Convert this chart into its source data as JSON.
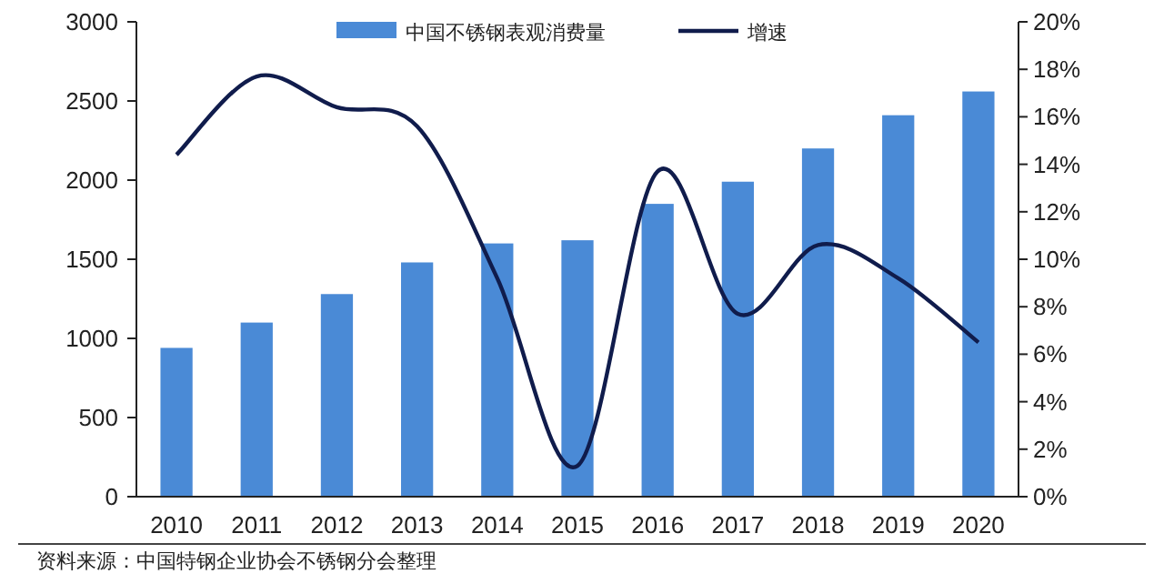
{
  "chart_data": {
    "type": "bar",
    "categories": [
      "2010",
      "2011",
      "2012",
      "2013",
      "2014",
      "2015",
      "2016",
      "2017",
      "2018",
      "2019",
      "2020"
    ],
    "series": [
      {
        "name": "中国不锈钢表观消费量",
        "color": "#4a8ad6",
        "values": [
          940,
          1100,
          1280,
          1480,
          1600,
          1620,
          1850,
          1990,
          2200,
          2410,
          2560
        ]
      },
      {
        "name": "增速",
        "type": "line",
        "axis": "y2",
        "color": "#101c4c",
        "values": [
          14.4,
          17.7,
          16.4,
          15.6,
          9.2,
          1.3,
          13.7,
          7.7,
          10.6,
          9.2,
          6.5
        ]
      }
    ],
    "ylim": [
      0,
      3000
    ],
    "yticks": [
      0,
      500,
      1000,
      1500,
      2000,
      2500,
      3000
    ],
    "y2lim": [
      0,
      20
    ],
    "y2ticks": [
      {
        "value": 0,
        "label": "0%"
      },
      {
        "value": 2,
        "label": "2%"
      },
      {
        "value": 4,
        "label": "4%"
      },
      {
        "value": 6,
        "label": "6%"
      },
      {
        "value": 8,
        "label": "8%"
      },
      {
        "value": 10,
        "label": "10%"
      },
      {
        "value": 12,
        "label": "12%"
      },
      {
        "value": 14,
        "label": "14%"
      },
      {
        "value": 16,
        "label": "16%"
      },
      {
        "value": 18,
        "label": "18%"
      },
      {
        "value": 20,
        "label": "20%"
      }
    ],
    "legend": "top",
    "annotations": [
      "资料来源：中国特钢企业协会不锈钢分会整理"
    ]
  }
}
